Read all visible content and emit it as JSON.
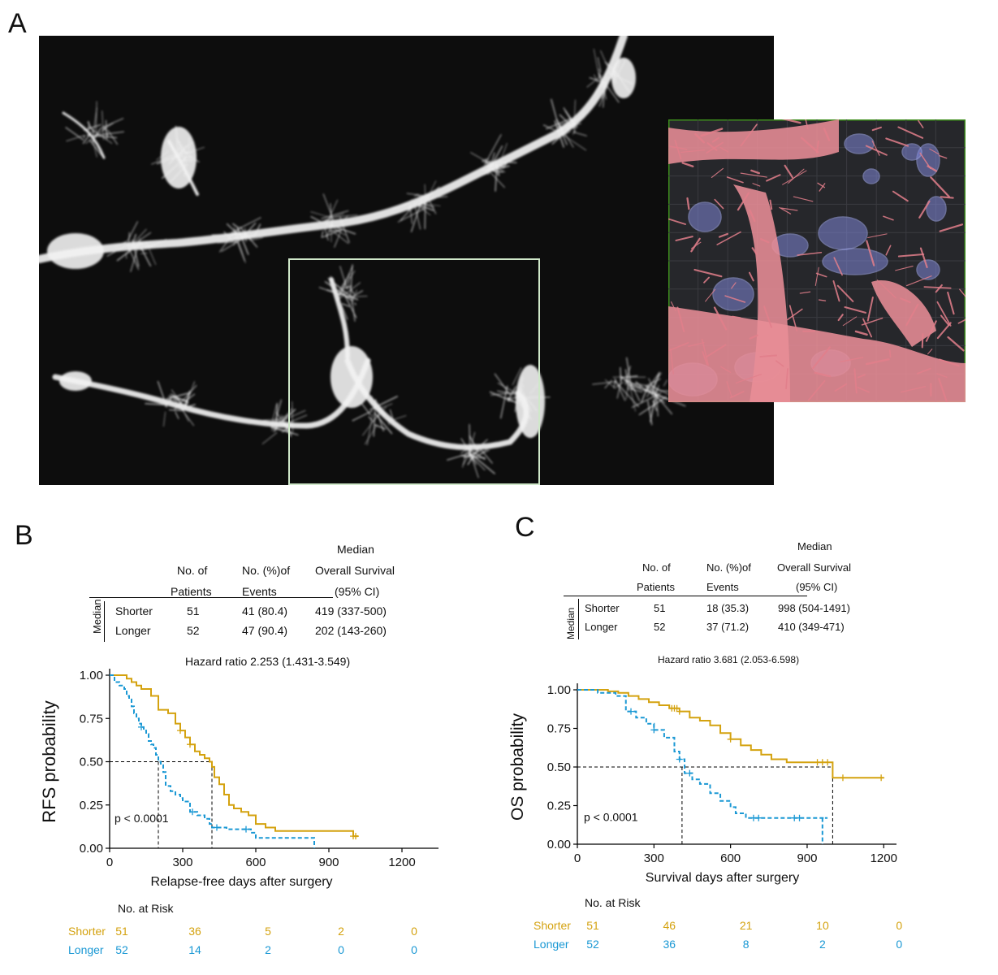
{
  "panels": {
    "a": "A",
    "b": "B",
    "c": "C"
  },
  "micrograph": {
    "tissue_color": "#f2f2f2",
    "inset_frame_color": "#3e8e1c",
    "roi_frame_color": "#cfe8c9"
  },
  "colors": {
    "shorter": "#d4a20f",
    "longer": "#1a98d4",
    "median_line": "#000000"
  },
  "table_b": {
    "head_median": "Median",
    "head_no_of": "No. of",
    "head_patients": "Patients",
    "head_no_events": "No. (%)of",
    "head_events": "Events",
    "head_overall_survival": "Overall Survival",
    "head_ci": "(95% CI)",
    "side_label": "Median",
    "rows": [
      {
        "group": "Shorter",
        "n": "51",
        "events": "41 (80.4)",
        "median": "419 (337-500)"
      },
      {
        "group": "Longer",
        "n": "52",
        "events": "47 (90.4)",
        "median": "202 (143-260)"
      }
    ],
    "hazard_ratio": "Hazard ratio 2.253 (1.431-3.549)"
  },
  "table_c": {
    "head_median": "Median",
    "head_no_of": "No. of",
    "head_patients": "Patients",
    "head_no_events": "No. (%)of",
    "head_events": "Events",
    "head_overall_survival": "Overall Survival",
    "head_ci": "(95% CI)",
    "side_label": "Median",
    "rows": [
      {
        "group": "Shorter",
        "n": "51",
        "events": "18 (35.3)",
        "median": "998 (504-1491)"
      },
      {
        "group": "Longer",
        "n": "52",
        "events": "37 (71.2)",
        "median": "410 (349-471)"
      }
    ],
    "hazard_ratio": "Hazard ratio 3.681 (2.053-6.598)"
  },
  "chart_data": [
    {
      "type": "line",
      "ylabel": "RFS probability",
      "xlabel": "Relapse-free days after surgery",
      "xlim": [
        0,
        1350
      ],
      "ylim": [
        0,
        1
      ],
      "xticks": [
        "0",
        "300",
        "600",
        "900",
        "1200"
      ],
      "yticks": [
        "0.00",
        "0.25",
        "0.50",
        "0.75",
        "1.00"
      ],
      "pvalue": "p < 0.0001",
      "median_lines": [
        200,
        420
      ],
      "series": [
        {
          "name": "Shorter",
          "style": "solid",
          "x": [
            0,
            30,
            70,
            90,
            110,
            130,
            170,
            200,
            240,
            270,
            290,
            310,
            330,
            350,
            370,
            390,
            410,
            420,
            430,
            450,
            470,
            490,
            510,
            540,
            570,
            600,
            640,
            680,
            720,
            780,
            820,
            840,
            860,
            900,
            1000,
            1020
          ],
          "y": [
            1.0,
            1.0,
            0.98,
            0.96,
            0.94,
            0.92,
            0.88,
            0.8,
            0.78,
            0.72,
            0.68,
            0.64,
            0.6,
            0.56,
            0.54,
            0.52,
            0.5,
            0.47,
            0.41,
            0.37,
            0.31,
            0.25,
            0.23,
            0.21,
            0.19,
            0.14,
            0.12,
            0.1,
            0.1,
            0.1,
            0.1,
            0.1,
            0.1,
            0.1,
            0.07,
            0.07
          ],
          "censor_x": [
            290,
            330,
            1000,
            1010
          ]
        },
        {
          "name": "Longer",
          "style": "dashed",
          "x": [
            0,
            20,
            40,
            60,
            70,
            80,
            90,
            100,
            110,
            120,
            130,
            140,
            150,
            160,
            170,
            180,
            190,
            200,
            210,
            220,
            230,
            250,
            270,
            290,
            300,
            330,
            360,
            390,
            410,
            420,
            480,
            540,
            560,
            580,
            600,
            700,
            820,
            840
          ],
          "y": [
            1.0,
            0.96,
            0.94,
            0.92,
            0.88,
            0.86,
            0.82,
            0.78,
            0.75,
            0.72,
            0.7,
            0.68,
            0.66,
            0.62,
            0.6,
            0.58,
            0.54,
            0.5,
            0.48,
            0.44,
            0.36,
            0.33,
            0.31,
            0.29,
            0.27,
            0.21,
            0.19,
            0.17,
            0.14,
            0.12,
            0.11,
            0.11,
            0.11,
            0.09,
            0.06,
            0.06,
            0.06,
            0.0
          ],
          "censor_x": [
            130,
            340,
            440,
            560
          ]
        }
      ],
      "risk_table": {
        "title": "No. at Risk",
        "rows": [
          {
            "label": "Shorter",
            "values": [
              "51",
              "36",
              "5",
              "2",
              "0"
            ]
          },
          {
            "label": "Longer",
            "values": [
              "52",
              "14",
              "2",
              "0",
              "0"
            ]
          }
        ]
      }
    },
    {
      "type": "line",
      "ylabel": "OS probability",
      "xlabel": "Survival days after surgery",
      "xlim": [
        0,
        1250
      ],
      "ylim": [
        0,
        1
      ],
      "xticks": [
        "0",
        "300",
        "600",
        "900",
        "1200"
      ],
      "yticks": [
        "0.00",
        "0.25",
        "0.50",
        "0.75",
        "1.00"
      ],
      "pvalue": "p < 0.0001",
      "median_lines": [
        410,
        1000
      ],
      "series": [
        {
          "name": "Shorter",
          "style": "solid",
          "x": [
            0,
            120,
            160,
            200,
            240,
            280,
            320,
            360,
            400,
            440,
            480,
            520,
            560,
            600,
            640,
            680,
            720,
            760,
            820,
            900,
            1000,
            1200
          ],
          "y": [
            1.0,
            0.99,
            0.98,
            0.96,
            0.94,
            0.92,
            0.9,
            0.88,
            0.86,
            0.82,
            0.8,
            0.77,
            0.72,
            0.68,
            0.64,
            0.61,
            0.58,
            0.55,
            0.53,
            0.53,
            0.43,
            0.43
          ],
          "censor_x": [
            370,
            380,
            390,
            400,
            600,
            940,
            960,
            980,
            1040,
            1190
          ]
        },
        {
          "name": "Longer",
          "style": "dashed",
          "x": [
            0,
            80,
            150,
            190,
            230,
            270,
            300,
            340,
            380,
            400,
            420,
            450,
            480,
            520,
            560,
            600,
            620,
            660,
            700,
            800,
            900,
            980,
            960
          ],
          "y": [
            1.0,
            0.98,
            0.96,
            0.86,
            0.82,
            0.78,
            0.74,
            0.69,
            0.6,
            0.55,
            0.46,
            0.42,
            0.39,
            0.33,
            0.28,
            0.24,
            0.2,
            0.17,
            0.17,
            0.17,
            0.17,
            0.17,
            0.0
          ],
          "censor_x": [
            210,
            300,
            400,
            440,
            690,
            710,
            850,
            870
          ]
        }
      ],
      "risk_table": {
        "title": "No. at Risk",
        "rows": [
          {
            "label": "Shorter",
            "values": [
              "51",
              "46",
              "21",
              "10",
              "0"
            ]
          },
          {
            "label": "Longer",
            "values": [
              "52",
              "36",
              "8",
              "2",
              "0"
            ]
          }
        ]
      }
    }
  ]
}
